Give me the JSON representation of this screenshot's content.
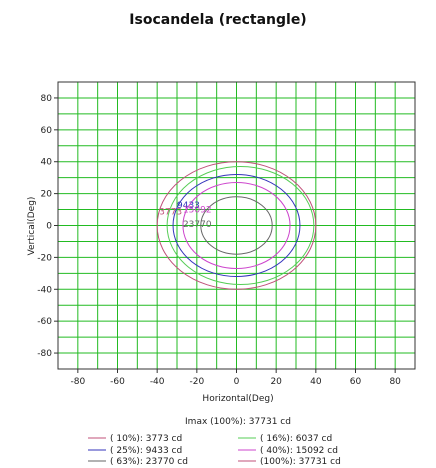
{
  "chart_data": {
    "type": "contour",
    "title": "Isocandela (rectangle)",
    "xlabel": "Horizontal(Deg)",
    "ylabel": "Vertical(Deg)",
    "xlim": [
      -90,
      90
    ],
    "ylim": [
      -90,
      90
    ],
    "x_ticks": [
      -80,
      -60,
      -40,
      -20,
      0,
      20,
      40,
      60,
      80
    ],
    "y_ticks": [
      80,
      60,
      40,
      20,
      0,
      -20,
      -40,
      -60,
      -80
    ],
    "grid": true,
    "grid_color": "#22bb22",
    "imax_text": "Imax (100%): 37731 cd",
    "levels": [
      {
        "legend": "( 10%):  3773 cd",
        "label": "3773",
        "color": "#c0507a",
        "rx": 40,
        "ry": 40,
        "cx": 0,
        "cy": 0
      },
      {
        "legend": "( 16%):  6037 cd",
        "label": "",
        "color": "#55cc55",
        "rx": 37,
        "ry": 37,
        "cx": 2,
        "cy": 0
      },
      {
        "legend": "( 25%):  9433 cd",
        "label": "9433",
        "color": "#3333bb",
        "rx": 32,
        "ry": 32,
        "cx": 0,
        "cy": 0
      },
      {
        "legend": "( 40%): 15092 cd",
        "label": "15092",
        "color": "#cc44cc",
        "rx": 27,
        "ry": 27,
        "cx": 0,
        "cy": 0
      },
      {
        "legend": "( 63%): 23770 cd",
        "label": "23770",
        "color": "#666666",
        "rx": 18,
        "ry": 18,
        "cx": 0,
        "cy": 0
      },
      {
        "legend": "(100%): 37731 cd",
        "label": "",
        "color": "#c0507a",
        "rx": 0,
        "ry": 0,
        "cx": 0,
        "cy": 0
      }
    ],
    "label_positions": [
      {
        "label": "3773",
        "x": -39,
        "y": 7
      },
      {
        "label": "9433",
        "x": -30,
        "y": 11
      },
      {
        "label": "15092",
        "x": -27,
        "y": 8
      },
      {
        "label": "23770",
        "x": -27,
        "y": -1
      }
    ],
    "legend_placement": "bottom"
  }
}
